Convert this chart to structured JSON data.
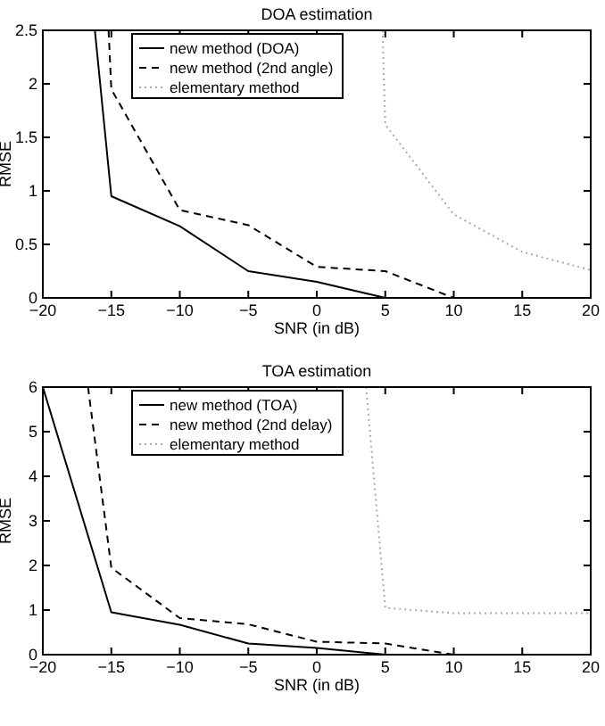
{
  "chart_data": [
    {
      "type": "line",
      "title": "DOA estimation",
      "xlabel": "SNR (in dB)",
      "ylabel": "RMSE",
      "xlim": [
        -20,
        20
      ],
      "ylim": [
        0,
        2.5
      ],
      "xticks": [
        -20,
        -15,
        -10,
        -5,
        0,
        5,
        10,
        15,
        20
      ],
      "yticks": [
        0,
        0.5,
        1,
        1.5,
        2,
        2.5
      ],
      "grid": false,
      "legend": "top left",
      "marker": "none",
      "series": [
        {
          "name": "new method (DOA)",
          "color": "#000000",
          "line_style": "solid",
          "x": [
            -16.2,
            -15,
            -10,
            -5,
            0,
            5
          ],
          "values": [
            2.5,
            0.95,
            0.67,
            0.25,
            0.15,
            0
          ]
        },
        {
          "name": "new method (2nd angle)",
          "color": "#000000",
          "line_style": "dashed",
          "x": [
            -15.2,
            -15,
            -10,
            -5,
            0,
            5,
            10
          ],
          "values": [
            2.5,
            1.95,
            0.82,
            0.68,
            0.29,
            0.25,
            0
          ]
        },
        {
          "name": "elementary method",
          "color": "#aaaaaa",
          "line_style": "dotted",
          "x": [
            4.8,
            5,
            10,
            15,
            20
          ],
          "values": [
            2.5,
            1.62,
            0.78,
            0.43,
            0.26
          ]
        }
      ]
    },
    {
      "type": "line",
      "title": "TOA estimation",
      "xlabel": "SNR (in dB)",
      "ylabel": "RMSE",
      "xlim": [
        -20,
        20
      ],
      "ylim": [
        0,
        6
      ],
      "xticks": [
        -20,
        -15,
        -10,
        -5,
        0,
        5,
        10,
        15,
        20
      ],
      "yticks": [
        0,
        1,
        2,
        3,
        4,
        5,
        6
      ],
      "grid": false,
      "legend": "top left",
      "marker": "none",
      "series": [
        {
          "name": "new method (TOA)",
          "color": "#000000",
          "line_style": "solid",
          "x": [
            -20,
            -15,
            -10,
            -5,
            0,
            5
          ],
          "values": [
            6,
            0.95,
            0.67,
            0.25,
            0.15,
            0
          ]
        },
        {
          "name": "new method (2nd delay)",
          "color": "#000000",
          "line_style": "dashed",
          "x": [
            -16.7,
            -15,
            -10,
            -5,
            0,
            5,
            10
          ],
          "values": [
            6,
            1.95,
            0.82,
            0.68,
            0.29,
            0.25,
            0
          ]
        },
        {
          "name": "elementary method",
          "color": "#aaaaaa",
          "line_style": "dotted",
          "x": [
            3.6,
            5,
            10,
            15,
            20
          ],
          "values": [
            6,
            1.05,
            0.93,
            0.93,
            0.93
          ]
        }
      ]
    }
  ]
}
